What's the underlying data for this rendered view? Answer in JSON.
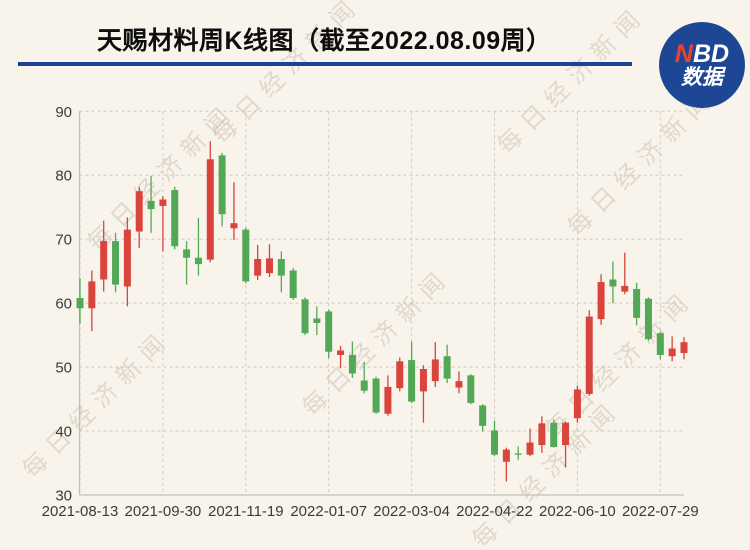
{
  "header": {
    "title": "天赐材料周K线图（截至2022.08.09周）",
    "logo": {
      "n": "N",
      "bd": "BD",
      "line2": "数据"
    }
  },
  "watermark": {
    "text": "每日经济新闻"
  },
  "chart_data": {
    "type": "candlestick",
    "title": "天赐材料周K线图（截至2022.08.09周）",
    "xlabel": "",
    "ylabel": "",
    "ylim": [
      30,
      90
    ],
    "y_ticks": [
      30,
      40,
      50,
      60,
      70,
      80,
      90
    ],
    "x_tick_indices": [
      0,
      7,
      14,
      21,
      28,
      35,
      42,
      49
    ],
    "x_tick_labels": [
      "2021-08-13",
      "2021-09-30",
      "2021-11-19",
      "2022-01-07",
      "2022-03-04",
      "2022-04-22",
      "2022-06-10",
      "2022-07-29"
    ],
    "grid": true,
    "legend": "none",
    "up_color": "#d9443c",
    "down_color": "#53a858",
    "grid_color": "#cfcbc3",
    "axis_color": "#c4c0b7",
    "label_color": "#3b3b3b",
    "series": [
      {
        "date": "2021-08-13",
        "open": 60.8,
        "high": 63.9,
        "low": 56.8,
        "close": 59.2
      },
      {
        "date": "2021-08-20",
        "open": 59.2,
        "high": 65.1,
        "low": 55.6,
        "close": 63.4
      },
      {
        "date": "2021-08-27",
        "open": 63.7,
        "high": 72.9,
        "low": 61.8,
        "close": 69.7
      },
      {
        "date": "2021-09-03",
        "open": 69.7,
        "high": 71.0,
        "low": 61.7,
        "close": 62.9
      },
      {
        "date": "2021-09-10",
        "open": 62.6,
        "high": 73.4,
        "low": 59.5,
        "close": 71.5
      },
      {
        "date": "2021-09-17",
        "open": 71.2,
        "high": 78.2,
        "low": 68.6,
        "close": 77.5
      },
      {
        "date": "2021-09-24",
        "open": 76.0,
        "high": 79.9,
        "low": 71.0,
        "close": 74.7
      },
      {
        "date": "2021-09-30",
        "open": 75.2,
        "high": 76.7,
        "low": 68.1,
        "close": 76.2
      },
      {
        "date": "2021-10-08",
        "open": 77.7,
        "high": 78.2,
        "low": 68.4,
        "close": 68.9
      },
      {
        "date": "2021-10-15",
        "open": 68.4,
        "high": 69.7,
        "low": 62.9,
        "close": 67.1
      },
      {
        "date": "2021-10-22",
        "open": 67.1,
        "high": 73.3,
        "low": 64.3,
        "close": 66.1
      },
      {
        "date": "2021-10-29",
        "open": 66.8,
        "high": 85.3,
        "low": 66.4,
        "close": 82.5
      },
      {
        "date": "2021-11-05",
        "open": 83.1,
        "high": 83.5,
        "low": 72.0,
        "close": 73.9
      },
      {
        "date": "2021-11-12",
        "open": 71.7,
        "high": 78.9,
        "low": 69.9,
        "close": 72.5
      },
      {
        "date": "2021-11-19",
        "open": 71.5,
        "high": 71.8,
        "low": 63.1,
        "close": 63.4
      },
      {
        "date": "2021-11-26",
        "open": 64.3,
        "high": 69.1,
        "low": 63.6,
        "close": 66.9
      },
      {
        "date": "2021-12-03",
        "open": 64.7,
        "high": 69.2,
        "low": 64.1,
        "close": 67.0
      },
      {
        "date": "2021-12-10",
        "open": 66.9,
        "high": 68.1,
        "low": 61.7,
        "close": 64.3
      },
      {
        "date": "2021-12-17",
        "open": 65.1,
        "high": 65.5,
        "low": 60.5,
        "close": 60.8
      },
      {
        "date": "2021-12-24",
        "open": 60.6,
        "high": 60.9,
        "low": 55.0,
        "close": 55.3
      },
      {
        "date": "2021-12-31",
        "open": 57.6,
        "high": 59.5,
        "low": 55.0,
        "close": 56.9
      },
      {
        "date": "2022-01-07",
        "open": 58.7,
        "high": 59.0,
        "low": 51.4,
        "close": 52.4
      },
      {
        "date": "2022-01-14",
        "open": 51.9,
        "high": 53.3,
        "low": 49.8,
        "close": 52.6
      },
      {
        "date": "2022-01-21",
        "open": 51.9,
        "high": 54.0,
        "low": 48.3,
        "close": 49.0
      },
      {
        "date": "2022-01-28",
        "open": 47.9,
        "high": 50.8,
        "low": 45.9,
        "close": 46.3
      },
      {
        "date": "2022-02-11",
        "open": 48.2,
        "high": 48.5,
        "low": 42.7,
        "close": 42.9
      },
      {
        "date": "2022-02-18",
        "open": 42.7,
        "high": 48.7,
        "low": 42.4,
        "close": 46.9
      },
      {
        "date": "2022-02-25",
        "open": 46.7,
        "high": 51.5,
        "low": 46.2,
        "close": 50.9
      },
      {
        "date": "2022-03-04",
        "open": 51.1,
        "high": 54.0,
        "low": 44.4,
        "close": 44.6
      },
      {
        "date": "2022-03-11",
        "open": 46.2,
        "high": 50.3,
        "low": 41.3,
        "close": 49.7
      },
      {
        "date": "2022-03-18",
        "open": 47.8,
        "high": 53.9,
        "low": 46.9,
        "close": 51.2
      },
      {
        "date": "2022-03-25",
        "open": 51.7,
        "high": 53.5,
        "low": 47.5,
        "close": 48.2
      },
      {
        "date": "2022-04-01",
        "open": 46.8,
        "high": 49.3,
        "low": 45.9,
        "close": 47.8
      },
      {
        "date": "2022-04-08",
        "open": 48.7,
        "high": 48.9,
        "low": 44.2,
        "close": 44.4
      },
      {
        "date": "2022-04-15",
        "open": 44.0,
        "high": 44.2,
        "low": 39.9,
        "close": 40.8
      },
      {
        "date": "2022-04-22",
        "open": 40.1,
        "high": 41.6,
        "low": 36.1,
        "close": 36.3
      },
      {
        "date": "2022-04-29",
        "open": 35.2,
        "high": 37.4,
        "low": 32.1,
        "close": 37.1
      },
      {
        "date": "2022-05-06",
        "open": 36.5,
        "high": 37.6,
        "low": 35.5,
        "close": 36.3
      },
      {
        "date": "2022-05-13",
        "open": 36.3,
        "high": 40.4,
        "low": 36.1,
        "close": 38.2
      },
      {
        "date": "2022-05-20",
        "open": 37.8,
        "high": 42.3,
        "low": 36.6,
        "close": 41.2
      },
      {
        "date": "2022-05-27",
        "open": 41.3,
        "high": 41.8,
        "low": 37.4,
        "close": 37.5
      },
      {
        "date": "2022-06-02",
        "open": 37.8,
        "high": 41.5,
        "low": 34.3,
        "close": 41.3
      },
      {
        "date": "2022-06-10",
        "open": 42.0,
        "high": 47.1,
        "low": 41.3,
        "close": 46.5
      },
      {
        "date": "2022-06-17",
        "open": 45.8,
        "high": 58.9,
        "low": 45.5,
        "close": 57.9
      },
      {
        "date": "2022-06-24",
        "open": 57.5,
        "high": 64.5,
        "low": 56.6,
        "close": 63.3
      },
      {
        "date": "2022-07-01",
        "open": 63.7,
        "high": 66.5,
        "low": 60.0,
        "close": 62.6
      },
      {
        "date": "2022-07-08",
        "open": 61.8,
        "high": 67.9,
        "low": 61.4,
        "close": 62.7
      },
      {
        "date": "2022-07-15",
        "open": 62.2,
        "high": 63.2,
        "low": 56.5,
        "close": 57.7
      },
      {
        "date": "2022-07-22",
        "open": 60.7,
        "high": 60.9,
        "low": 54.1,
        "close": 54.4
      },
      {
        "date": "2022-07-29",
        "open": 55.3,
        "high": 55.5,
        "low": 51.2,
        "close": 51.9
      },
      {
        "date": "2022-08-05",
        "open": 51.7,
        "high": 54.8,
        "low": 50.9,
        "close": 52.9
      },
      {
        "date": "2022-08-09",
        "open": 52.2,
        "high": 54.7,
        "low": 51.2,
        "close": 53.9
      }
    ]
  }
}
